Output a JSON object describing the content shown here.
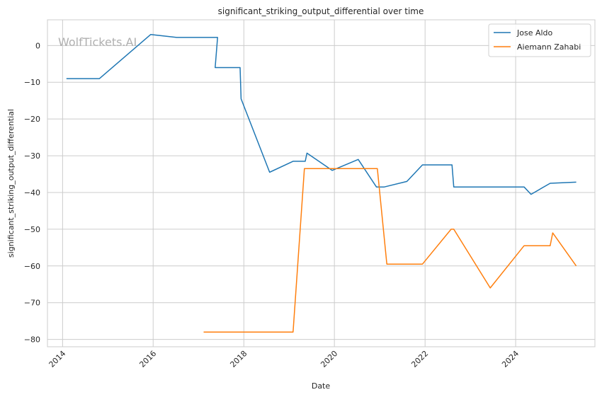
{
  "chart_data": {
    "type": "line",
    "title": "significant_striking_output_differential over time",
    "xlabel": "Date",
    "ylabel": "significant_striking_output_differential",
    "watermark": "WolfTickets.AI",
    "x_tick_labels": [
      "2014",
      "2016",
      "2018",
      "2020",
      "2022",
      "2024"
    ],
    "y_ticks": [
      0,
      -10,
      -20,
      -30,
      -40,
      -50,
      -60,
      -70,
      -80
    ],
    "y_tick_labels": [
      "0",
      "−10",
      "−20",
      "−30",
      "−40",
      "−50",
      "−60",
      "−70",
      "−80"
    ],
    "xlim": [
      "2013-09-01",
      "2025-10-01"
    ],
    "ylim": [
      -82,
      7
    ],
    "grid": true,
    "legend": "top-right",
    "series": [
      {
        "name": "Jose Aldo",
        "color": "#1f77b4",
        "points": [
          {
            "x": "2014-02-01",
            "y": -9
          },
          {
            "x": "2014-10-25",
            "y": -9
          },
          {
            "x": "2015-12-12",
            "y": 3
          },
          {
            "x": "2016-07-09",
            "y": 2.2
          },
          {
            "x": "2017-06-03",
            "y": 2.2
          },
          {
            "x": "2017-06-03",
            "y": 2.2
          },
          {
            "x": "2017-05-15",
            "y": -6
          },
          {
            "x": "2017-12-02",
            "y": -6
          },
          {
            "x": "2017-12-10",
            "y": -14.5
          },
          {
            "x": "2018-07-28",
            "y": -34.5
          },
          {
            "x": "2019-02-02",
            "y": -31.5
          },
          {
            "x": "2019-05-11",
            "y": -31.5
          },
          {
            "x": "2019-05-25",
            "y": -29.3
          },
          {
            "x": "2019-12-14",
            "y": -34
          },
          {
            "x": "2020-07-11",
            "y": -31
          },
          {
            "x": "2020-12-05",
            "y": -38.5
          },
          {
            "x": "2021-02-06",
            "y": -38.5
          },
          {
            "x": "2021-08-07",
            "y": -37
          },
          {
            "x": "2021-12-11",
            "y": -32.5
          },
          {
            "x": "2022-08-06",
            "y": -32.5
          },
          {
            "x": "2022-08-20",
            "y": -38.5
          },
          {
            "x": "2024-03-09",
            "y": -38.5
          },
          {
            "x": "2024-05-04",
            "y": -40.5
          },
          {
            "x": "2024-10-05",
            "y": -37.5
          },
          {
            "x": "2025-05-03",
            "y": -37.2
          }
        ]
      },
      {
        "name": "Aiemann Zahabi",
        "color": "#ff7f0e",
        "points": [
          {
            "x": "2017-02-11",
            "y": -78
          },
          {
            "x": "2019-02-02",
            "y": -78
          },
          {
            "x": "2019-05-04",
            "y": -33.5
          },
          {
            "x": "2020-12-12",
            "y": -33.5
          },
          {
            "x": "2021-02-27",
            "y": -59.5
          },
          {
            "x": "2021-12-11",
            "y": -59.5
          },
          {
            "x": "2022-07-30",
            "y": -50
          },
          {
            "x": "2022-08-20",
            "y": -50
          },
          {
            "x": "2023-06-10",
            "y": -66
          },
          {
            "x": "2024-03-09",
            "y": -54.5
          },
          {
            "x": "2024-10-05",
            "y": -54.5
          },
          {
            "x": "2024-10-26",
            "y": -51
          },
          {
            "x": "2025-05-03",
            "y": -60
          }
        ]
      }
    ]
  }
}
